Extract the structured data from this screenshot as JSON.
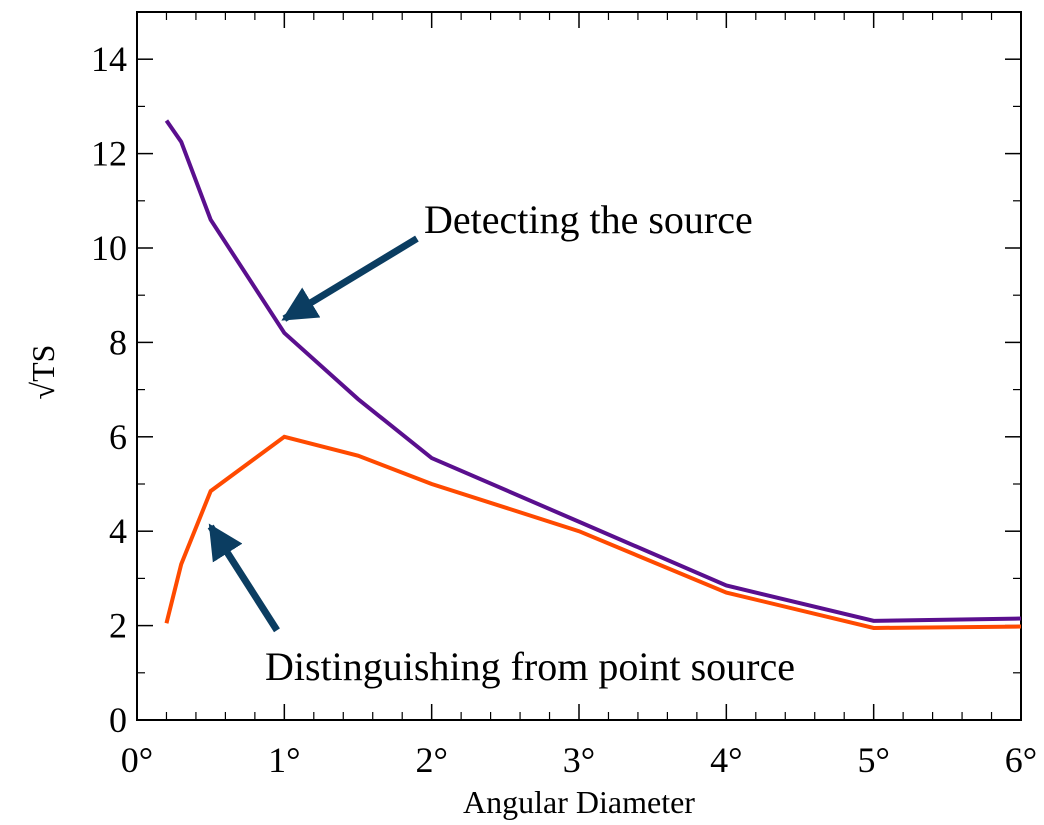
{
  "chart_data": {
    "type": "line",
    "xlabel": "Angular Diameter",
    "ylabel": "√TS",
    "xlim": [
      0,
      6
    ],
    "ylim": [
      0,
      15
    ],
    "x_ticks": [
      0,
      1,
      2,
      3,
      4,
      5,
      6
    ],
    "x_tick_labels": [
      "0°",
      "1°",
      "2°",
      "3°",
      "4°",
      "5°",
      "6°"
    ],
    "y_ticks": [
      0,
      2,
      4,
      6,
      8,
      10,
      12,
      14
    ],
    "y_tick_labels": [
      "0",
      "2",
      "4",
      "6",
      "8",
      "10",
      "12",
      "14"
    ],
    "grid": false,
    "series": [
      {
        "color": "#5a0f8e",
        "x": [
          0.2,
          0.3,
          0.5,
          1.0,
          1.5,
          2.0,
          3.0,
          4.0,
          5.0,
          6.0
        ],
        "y": [
          12.7,
          12.25,
          10.6,
          8.2,
          6.8,
          5.55,
          4.2,
          2.85,
          2.1,
          2.15
        ]
      },
      {
        "color": "#ff4a00",
        "x": [
          0.2,
          0.3,
          0.5,
          1.0,
          1.5,
          2.0,
          3.0,
          4.0,
          5.0,
          6.0
        ],
        "y": [
          2.05,
          3.3,
          4.85,
          6.0,
          5.6,
          5.0,
          4.0,
          2.7,
          1.95,
          1.98
        ]
      }
    ],
    "annotations": [
      {
        "text": "Detecting the source",
        "arrow_tip": [
          1.0,
          8.5
        ],
        "arrow_tail": [
          1.9,
          10.2
        ]
      },
      {
        "text": "Distinguishing from point source",
        "arrow_tip": [
          0.5,
          4.1
        ],
        "arrow_tail": [
          0.95,
          1.9
        ]
      }
    ],
    "arrow_color": "#0b3d61"
  }
}
